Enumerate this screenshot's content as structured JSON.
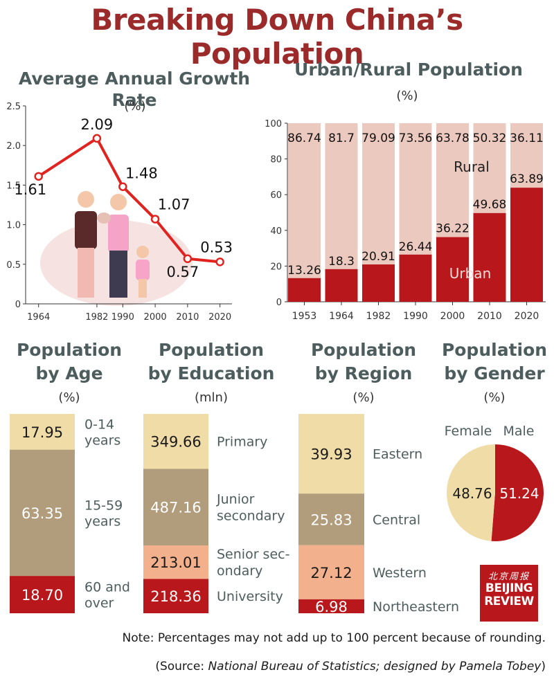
{
  "title": "Breaking Down China’s Population",
  "colors": {
    "title": "#9b2b2a",
    "heading": "#4d5d5d",
    "red": "#b8181c",
    "pink": "#ecc9bf",
    "tan": "#efdca6",
    "taupe": "#b19c7c",
    "salmon": "#f2b08c",
    "line": "#e0231f"
  },
  "chart_data": [
    {
      "type": "line",
      "title": "Average Annual Growth Rate",
      "unit": "(%)",
      "x": [
        1964,
        1982,
        1990,
        2000,
        2010,
        2020
      ],
      "y": [
        1.61,
        2.09,
        1.48,
        1.07,
        0.57,
        0.53
      ],
      "labels": [
        "1.61",
        "2.09",
        "1.48",
        "1.07",
        "0.57",
        "0.53"
      ],
      "xticks": [
        "1964",
        "1982",
        "1990",
        "2000",
        "2010",
        "2020"
      ],
      "yticks": [
        "0",
        "0.5",
        "1.0",
        "1.5",
        "2.0",
        "2.5"
      ],
      "ylim": [
        0,
        2.5
      ]
    },
    {
      "type": "bar",
      "title": "Urban/Rural Population",
      "unit": "(%)",
      "categories": [
        "1953",
        "1964",
        "1982",
        "1990",
        "2000",
        "2010",
        "2020"
      ],
      "series": [
        {
          "name": "Urban",
          "values": [
            13.26,
            18.3,
            20.91,
            26.44,
            36.22,
            49.68,
            63.89
          ],
          "labels": [
            "13.26",
            "18.3",
            "20.91",
            "26.44",
            "36.22",
            "49.68",
            "63.89"
          ]
        },
        {
          "name": "Rural",
          "values": [
            86.74,
            81.7,
            79.09,
            73.56,
            63.78,
            50.32,
            36.11
          ],
          "labels": [
            "86.74",
            "81.7",
            "79.09",
            "73.56",
            "63.78",
            "50.32",
            "36.11"
          ]
        }
      ],
      "yticks": [
        "0",
        "20",
        "40",
        "60",
        "80",
        "100"
      ],
      "ylim": [
        0,
        100
      ]
    },
    {
      "type": "bar",
      "title": "Population by Age",
      "title_lines": [
        "Population",
        "by Age"
      ],
      "unit": "(%)",
      "segments": [
        {
          "label": "0-14 years",
          "label_lines": [
            "0-14",
            "years"
          ],
          "value": 17.95,
          "value_text": "17.95"
        },
        {
          "label": "15-59 years",
          "label_lines": [
            "15-59",
            "years"
          ],
          "value": 63.35,
          "value_text": "63.35"
        },
        {
          "label": "60 and over",
          "label_lines": [
            "60 and",
            "over"
          ],
          "value": 18.7,
          "value_text": "18.70"
        }
      ]
    },
    {
      "type": "bar",
      "title": "Population by Education",
      "title_lines": [
        "Population",
        "by Education"
      ],
      "unit": "(mln)",
      "segments": [
        {
          "label": "Primary",
          "label_lines": [
            "Primary"
          ],
          "value": 349.66,
          "value_text": "349.66"
        },
        {
          "label": "Junior secondary",
          "label_lines": [
            "Junior",
            "secondary"
          ],
          "value": 487.16,
          "value_text": "487.16"
        },
        {
          "label": "Senior secondary",
          "label_lines": [
            "Senior sec-",
            "ondary"
          ],
          "value": 213.01,
          "value_text": "213.01"
        },
        {
          "label": "University",
          "label_lines": [
            "University"
          ],
          "value": 218.36,
          "value_text": "218.36"
        }
      ]
    },
    {
      "type": "bar",
      "title": "Population by Region",
      "title_lines": [
        "Population",
        "by Region"
      ],
      "unit": "(%)",
      "segments": [
        {
          "label": "Eastern",
          "label_lines": [
            "Eastern"
          ],
          "value": 39.93,
          "value_text": "39.93"
        },
        {
          "label": "Central",
          "label_lines": [
            "Central"
          ],
          "value": 25.83,
          "value_text": "25.83"
        },
        {
          "label": "Western",
          "label_lines": [
            "Western"
          ],
          "value": 27.12,
          "value_text": "27.12"
        },
        {
          "label": "Northeastern",
          "label_lines": [
            "Northeastern"
          ],
          "value": 6.98,
          "value_text": "6.98"
        }
      ]
    },
    {
      "type": "pie",
      "title": "Population by Gender",
      "title_lines": [
        "Population",
        "by Gender"
      ],
      "unit": "(%)",
      "slices": [
        {
          "label": "Female",
          "value": 48.76,
          "value_text": "48.76"
        },
        {
          "label": "Male",
          "value": 51.24,
          "value_text": "51.24"
        }
      ]
    }
  ],
  "note": "Note: Percentages may not add up to 100 percent because of rounding.",
  "source": {
    "prefix": "(Source: ",
    "italic": "National Bureau of Statistics; designed by Pamela Tobey",
    "suffix": ")"
  },
  "logo": {
    "chinese": "北京周报",
    "line1": "BEIJING",
    "line2": "REVIEW"
  }
}
